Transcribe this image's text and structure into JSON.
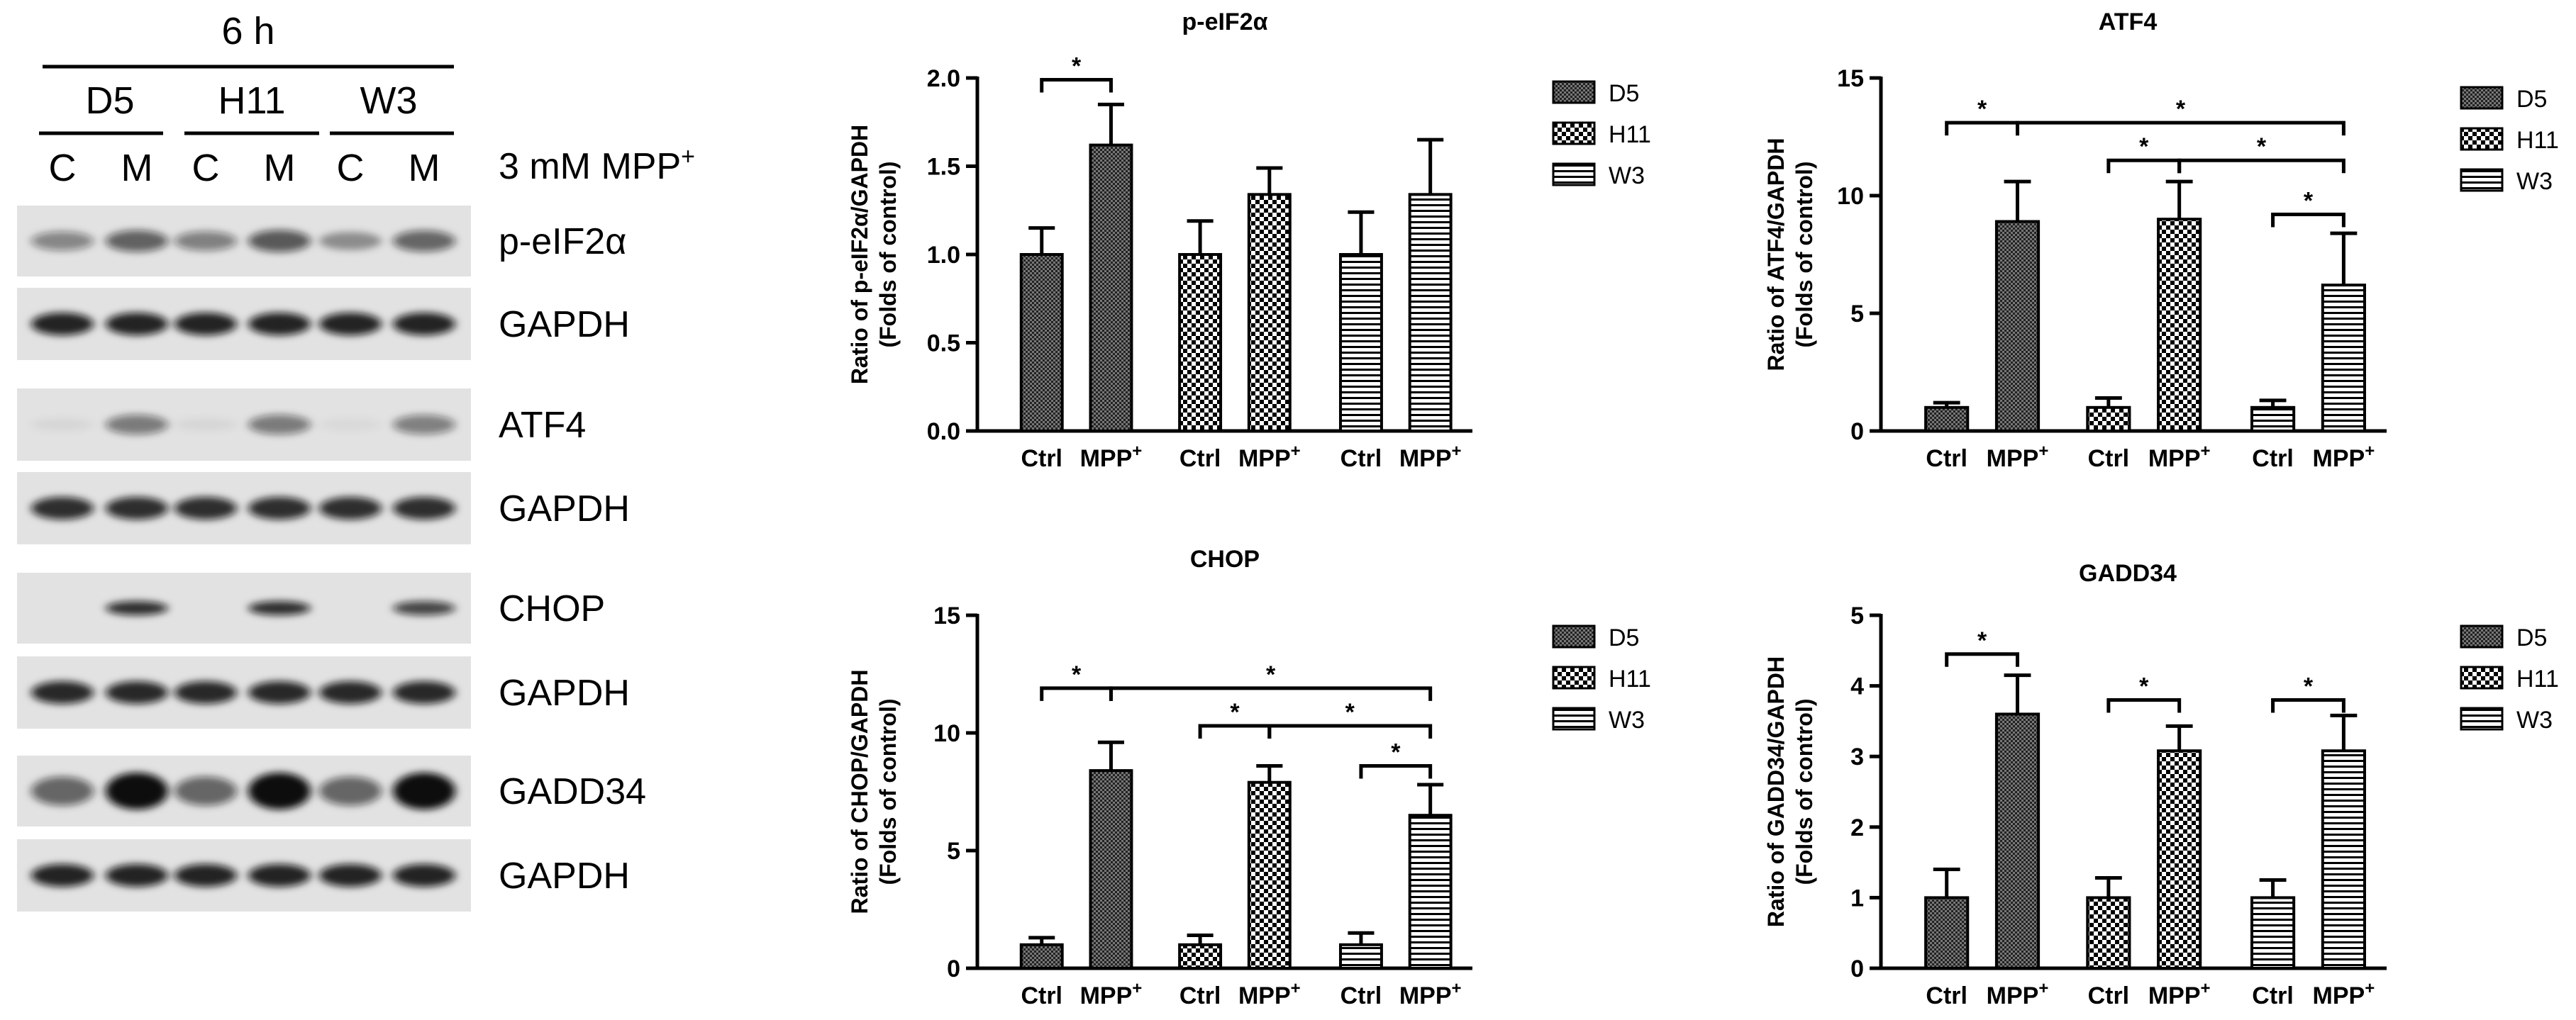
{
  "western_blot": {
    "time_label": "6 h",
    "cell_lines": [
      "D5",
      "H11",
      "W3"
    ],
    "lanes": [
      "C",
      "M",
      "C",
      "M",
      "C",
      "M"
    ],
    "treatment_label": "3 mM MPP",
    "treatment_superscript": "+",
    "blots": [
      {
        "label": "p-eIF2α",
        "intensities": [
          0.45,
          0.62,
          0.48,
          0.66,
          0.38,
          0.6
        ]
      },
      {
        "label": "GAPDH",
        "intensities": [
          0.9,
          0.9,
          0.9,
          0.9,
          0.9,
          0.9
        ]
      },
      {
        "label": "ATF4",
        "intensities": [
          0.05,
          0.5,
          0.05,
          0.5,
          0.04,
          0.48
        ]
      },
      {
        "label": "GAPDH",
        "intensities": [
          0.85,
          0.85,
          0.85,
          0.85,
          0.85,
          0.85
        ]
      },
      {
        "label": "CHOP",
        "intensities": [
          0.0,
          0.85,
          0.0,
          0.85,
          0.0,
          0.75
        ]
      },
      {
        "label": "GAPDH",
        "intensities": [
          0.88,
          0.88,
          0.88,
          0.88,
          0.88,
          0.88
        ]
      },
      {
        "label": "GADD34",
        "intensities": [
          0.6,
          1.0,
          0.6,
          1.0,
          0.6,
          1.0
        ]
      },
      {
        "label": "GAPDH",
        "intensities": [
          0.9,
          0.9,
          0.9,
          0.9,
          0.9,
          0.9
        ]
      }
    ]
  },
  "chart_data": [
    {
      "type": "bar",
      "title": "p-eIF2α",
      "ylabel_line1": "Ratio of p-eIF2α/GAPDH",
      "ylabel_line2": "(Folds of control)",
      "ylim": [
        0,
        2.0
      ],
      "yticks": [
        "0.0",
        "0.5",
        "1.0",
        "1.5",
        "2.0"
      ],
      "ytick_values": [
        0,
        0.5,
        1.0,
        1.5,
        2.0
      ],
      "legend": [
        "D5",
        "H11",
        "W3"
      ],
      "x_tick_labels": [
        "Ctrl",
        "MPP",
        "Ctrl",
        "MPP",
        "Ctrl",
        "MPP"
      ],
      "x_tick_superscripts": [
        "",
        "+",
        "",
        "+",
        "",
        "+"
      ],
      "series": [
        {
          "name": "D5",
          "values": [
            1.0,
            1.62
          ],
          "errors": [
            0.15,
            0.23
          ]
        },
        {
          "name": "H11",
          "values": [
            1.0,
            1.34
          ],
          "errors": [
            0.19,
            0.15
          ]
        },
        {
          "name": "W3",
          "values": [
            1.0,
            1.34
          ],
          "errors": [
            0.24,
            0.31
          ]
        }
      ],
      "significance": [
        {
          "from": 0,
          "to": 1,
          "y": 1.99,
          "label": "*"
        }
      ]
    },
    {
      "type": "bar",
      "title": "ATF4",
      "ylabel_line1": "Ratio of ATF4/GAPDH",
      "ylabel_line2": "(Folds of control)",
      "ylim": [
        0,
        15
      ],
      "yticks": [
        "0",
        "5",
        "10",
        "15"
      ],
      "ytick_values": [
        0,
        5,
        10,
        15
      ],
      "legend": [
        "D5",
        "H11",
        "W3"
      ],
      "x_tick_labels": [
        "Ctrl",
        "MPP",
        "Ctrl",
        "MPP",
        "Ctrl",
        "MPP"
      ],
      "x_tick_superscripts": [
        "",
        "+",
        "",
        "+",
        "",
        "+"
      ],
      "series": [
        {
          "name": "D5",
          "values": [
            1.0,
            8.9
          ],
          "errors": [
            0.2,
            1.7
          ]
        },
        {
          "name": "H11",
          "values": [
            1.0,
            9.0
          ],
          "errors": [
            0.4,
            1.6
          ]
        },
        {
          "name": "W3",
          "values": [
            1.0,
            6.2
          ],
          "errors": [
            0.3,
            2.2
          ]
        }
      ],
      "significance": [
        {
          "from": 0,
          "to": 1,
          "y": 13.1,
          "label": "*"
        },
        {
          "from": 1,
          "to": 5,
          "y": 13.1,
          "label": "*"
        },
        {
          "from": 2,
          "to": 3,
          "y": 11.5,
          "label": "*"
        },
        {
          "from": 3,
          "to": 5,
          "y": 11.5,
          "label": "*"
        },
        {
          "from": 4,
          "to": 5,
          "y": 9.2,
          "label": "*"
        }
      ]
    },
    {
      "type": "bar",
      "title": "CHOP",
      "ylabel_line1": "Ratio of CHOP/GAPDH",
      "ylabel_line2": "(Folds of control)",
      "ylim": [
        0,
        15
      ],
      "yticks": [
        "0",
        "5",
        "10",
        "15"
      ],
      "ytick_values": [
        0,
        5,
        10,
        15
      ],
      "legend": [
        "D5",
        "H11",
        "W3"
      ],
      "x_tick_labels": [
        "Ctrl",
        "MPP",
        "Ctrl",
        "MPP",
        "Ctrl",
        "MPP"
      ],
      "x_tick_superscripts": [
        "",
        "+",
        "",
        "+",
        "",
        "+"
      ],
      "series": [
        {
          "name": "D5",
          "values": [
            1.0,
            8.4
          ],
          "errors": [
            0.3,
            1.2
          ]
        },
        {
          "name": "H11",
          "values": [
            1.0,
            7.9
          ],
          "errors": [
            0.4,
            0.7
          ]
        },
        {
          "name": "W3",
          "values": [
            1.0,
            6.5
          ],
          "errors": [
            0.5,
            1.3
          ]
        }
      ],
      "significance": [
        {
          "from": 0,
          "to": 1,
          "y": 11.9,
          "label": "*"
        },
        {
          "from": 1,
          "to": 5,
          "y": 11.9,
          "label": "*"
        },
        {
          "from": 2,
          "to": 3,
          "y": 10.3,
          "label": "*"
        },
        {
          "from": 3,
          "to": 5,
          "y": 10.3,
          "label": "*"
        },
        {
          "from": 4,
          "to": 5,
          "y": 8.6,
          "label": "*"
        }
      ]
    },
    {
      "type": "bar",
      "title": "GADD34",
      "ylabel_line1": "Ratio of GADD34/GAPDH",
      "ylabel_line2": "(Folds of control)",
      "ylim": [
        0,
        5
      ],
      "yticks": [
        "0",
        "1",
        "2",
        "3",
        "4",
        "5"
      ],
      "ytick_values": [
        0,
        1,
        2,
        3,
        4,
        5
      ],
      "legend": [
        "D5",
        "H11",
        "W3"
      ],
      "x_tick_labels": [
        "Ctrl",
        "MPP",
        "Ctrl",
        "MPP",
        "Ctrl",
        "MPP"
      ],
      "x_tick_superscripts": [
        "",
        "+",
        "",
        "+",
        "",
        "+"
      ],
      "series": [
        {
          "name": "D5",
          "values": [
            1.0,
            3.6
          ],
          "errors": [
            0.4,
            0.55
          ]
        },
        {
          "name": "H11",
          "values": [
            1.0,
            3.08
          ],
          "errors": [
            0.28,
            0.35
          ]
        },
        {
          "name": "W3",
          "values": [
            1.0,
            3.08
          ],
          "errors": [
            0.25,
            0.5
          ]
        }
      ],
      "significance": [
        {
          "from": 0,
          "to": 1,
          "y": 4.45,
          "label": "*"
        },
        {
          "from": 2,
          "to": 3,
          "y": 3.8,
          "label": "*"
        },
        {
          "from": 4,
          "to": 5,
          "y": 3.8,
          "label": "*"
        }
      ]
    }
  ]
}
